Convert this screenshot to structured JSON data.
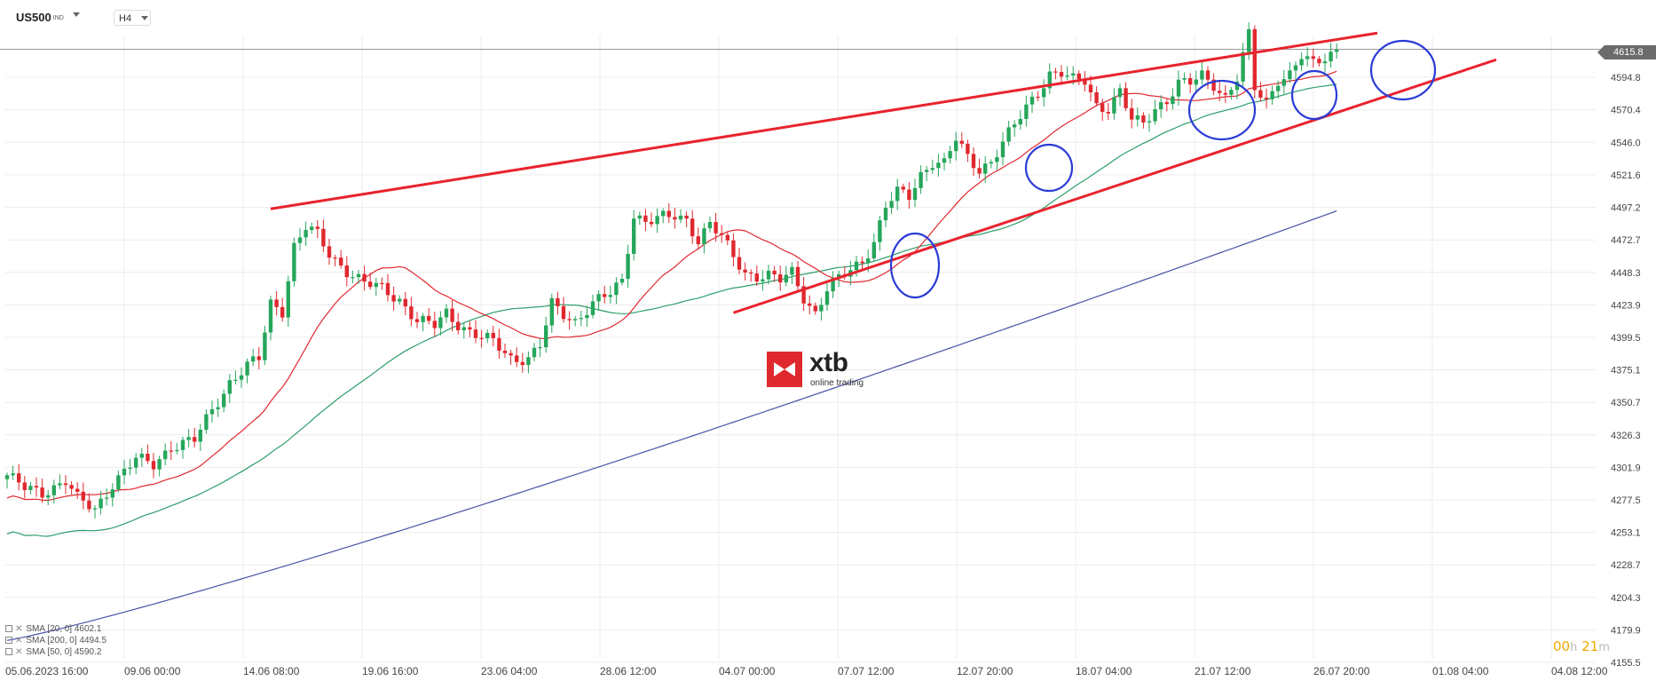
{
  "header": {
    "symbol": "US500",
    "symbol_sub": "IND",
    "timeframe": "H4"
  },
  "logo": {
    "name": "xtb",
    "tagline": "online trading"
  },
  "legend": [
    {
      "label": "SMA [20, 0]",
      "value": "4602.1"
    },
    {
      "label": "SMA [200, 0]",
      "value": "4494.5"
    },
    {
      "label": "SMA [50, 0]",
      "value": "4590.2"
    }
  ],
  "countdown": {
    "hours": "00",
    "h_unit": "h",
    "minutes": "21",
    "m_unit": "m"
  },
  "current_price": "4615.8",
  "colors": {
    "up": "#26a65b",
    "down": "#e0282f",
    "sma20": "#e0282f",
    "sma50": "#2e9e6b",
    "sma200": "#4a52a8",
    "trendline": "#e8232e",
    "circle": "#2a3bd6",
    "grid": "#ececec"
  },
  "chart_data": {
    "type": "candlestick",
    "x_axis": {
      "tick_labels": [
        "05.06.2023  16:00",
        "09.06  00:00",
        "14.06  08:00",
        "19.06  16:00",
        "23.06  04:00",
        "28.06  12:00",
        "04.07  00:00",
        "07.07  12:00",
        "12.07  20:00",
        "18.07  04:00",
        "21.07  12:00",
        "26.07  20:00",
        "01.08  04:00",
        "04.08  12:00"
      ]
    },
    "y_axis": {
      "ylim": [
        4150,
        4635
      ],
      "tick_labels": [
        "4155.5",
        "4179.9",
        "4204.3",
        "4228.7",
        "4253.1",
        "4277.5",
        "4301.9",
        "4326.3",
        "4350.7",
        "4375.1",
        "4399.5",
        "4423.9",
        "4448.3",
        "4472.7",
        "4497.2",
        "4521.6",
        "4546.0",
        "4570.4",
        "4594.8"
      ]
    },
    "close_anchors": [
      [
        0,
        4296
      ],
      [
        3,
        4286
      ],
      [
        6,
        4283
      ],
      [
        10,
        4292
      ],
      [
        12,
        4278
      ],
      [
        15,
        4270
      ],
      [
        18,
        4290
      ],
      [
        22,
        4308
      ],
      [
        25,
        4304
      ],
      [
        28,
        4318
      ],
      [
        32,
        4322
      ],
      [
        35,
        4345
      ],
      [
        38,
        4366
      ],
      [
        41,
        4378
      ],
      [
        43,
        4383
      ],
      [
        45,
        4425
      ],
      [
        47,
        4420
      ],
      [
        49,
        4468
      ],
      [
        51,
        4482
      ],
      [
        53,
        4476
      ],
      [
        55,
        4462
      ],
      [
        58,
        4450
      ],
      [
        61,
        4440
      ],
      [
        64,
        4436
      ],
      [
        67,
        4428
      ],
      [
        70,
        4412
      ],
      [
        73,
        4408
      ],
      [
        75,
        4418
      ],
      [
        77,
        4410
      ],
      [
        79,
        4404
      ],
      [
        81,
        4399
      ],
      [
        83,
        4396
      ],
      [
        86,
        4384
      ],
      [
        89,
        4384
      ],
      [
        91,
        4393
      ],
      [
        93,
        4424
      ],
      [
        95,
        4417
      ],
      [
        97,
        4412
      ],
      [
        100,
        4425
      ],
      [
        103,
        4432
      ],
      [
        105,
        4442
      ],
      [
        107,
        4492
      ],
      [
        109,
        4487
      ],
      [
        112,
        4489
      ],
      [
        114,
        4490
      ],
      [
        116,
        4488
      ],
      [
        118,
        4473
      ],
      [
        120,
        4485
      ],
      [
        122,
        4474
      ],
      [
        124,
        4460
      ],
      [
        126,
        4448
      ],
      [
        128,
        4446
      ],
      [
        130,
        4446
      ],
      [
        132,
        4442
      ],
      [
        134,
        4448
      ],
      [
        136,
        4430
      ],
      [
        138,
        4418
      ],
      [
        140,
        4436
      ],
      [
        142,
        4443
      ],
      [
        144,
        4450
      ],
      [
        146,
        4457
      ],
      [
        148,
        4472
      ],
      [
        150,
        4498
      ],
      [
        152,
        4508
      ],
      [
        154,
        4505
      ],
      [
        156,
        4522
      ],
      [
        158,
        4532
      ],
      [
        160,
        4530
      ],
      [
        162,
        4548
      ],
      [
        164,
        4534
      ],
      [
        166,
        4526
      ],
      [
        168,
        4532
      ],
      [
        170,
        4546
      ],
      [
        172,
        4558
      ],
      [
        174,
        4572
      ],
      [
        176,
        4584
      ],
      [
        178,
        4598
      ],
      [
        180,
        4598
      ],
      [
        182,
        4592
      ],
      [
        184,
        4592
      ],
      [
        186,
        4574
      ],
      [
        188,
        4572
      ],
      [
        190,
        4584
      ],
      [
        192,
        4562
      ],
      [
        194,
        4560
      ],
      [
        196,
        4572
      ],
      [
        198,
        4578
      ],
      [
        200,
        4590
      ],
      [
        202,
        4590
      ],
      [
        204,
        4596
      ],
      [
        206,
        4590
      ],
      [
        208,
        4580
      ],
      [
        210,
        4594
      ],
      [
        212,
        4626
      ],
      [
        213,
        4586
      ],
      [
        215,
        4576
      ],
      [
        217,
        4594
      ],
      [
        219,
        4597
      ],
      [
        221,
        4610
      ],
      [
        223,
        4604
      ],
      [
        225,
        4610
      ],
      [
        227,
        4616
      ]
    ],
    "series": [
      {
        "name": "SMA [20, 0]",
        "value": "4602.1"
      },
      {
        "name": "SMA [200, 0]",
        "value": "4494.5"
      },
      {
        "name": "SMA [50, 0]",
        "value": "4590.2"
      }
    ],
    "grid": true
  }
}
